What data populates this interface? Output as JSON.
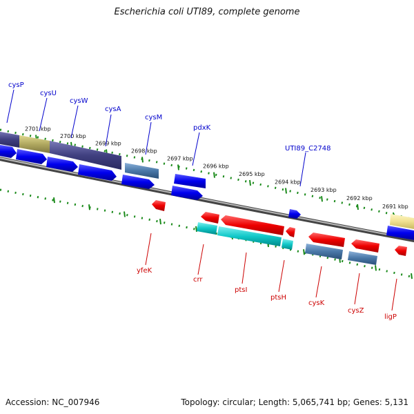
{
  "title": "Escherichia coli UTI89, complete genome",
  "footer": {
    "accession": "Accession: NC_007946",
    "topology": "Topology: circular; Length: 5,065,741 bp; Genes: 5,131"
  },
  "colors": {
    "forward_label": "#0000cc",
    "reverse_label": "#cc0000",
    "backbone": "#8a8a8a",
    "ticks": "#1a8a1a"
  },
  "ticks": [
    "2701 kbp",
    "2700 kbp",
    "2699 kbp",
    "2698 kbp",
    "2697 kbp",
    "2696 kbp",
    "2695 kbp",
    "2694 kbp",
    "2693 kbp",
    "2692 kbp",
    "2691 kbp"
  ],
  "forward_genes": [
    "cysP",
    "cysU",
    "cysW",
    "cysA",
    "cysM",
    "pdxK",
    "UTI89_C2748"
  ],
  "reverse_genes": [
    "yfeK",
    "crr",
    "ptsI",
    "ptsH",
    "cysK",
    "cysZ",
    "ligP"
  ]
}
